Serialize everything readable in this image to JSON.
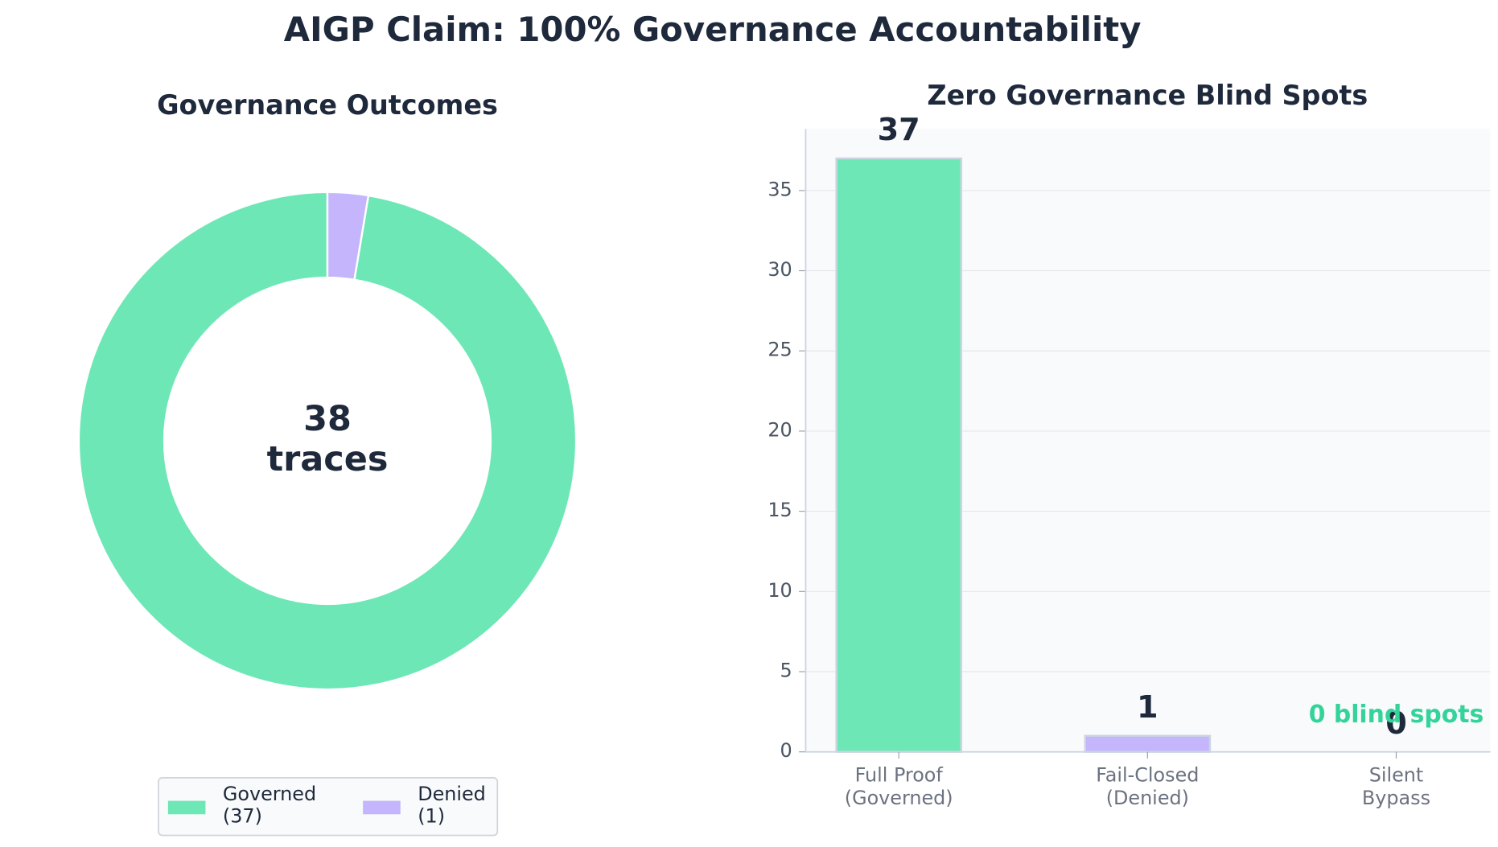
{
  "title": "AIGP Claim: 100% Governance Accountability",
  "chart_data": [
    {
      "type": "donut",
      "title": "Governance Outcomes",
      "center_text": "38\ntraces",
      "categories": [
        "Governed\n(37)",
        "Denied\n(1)"
      ],
      "values": [
        37,
        1
      ],
      "colors": [
        "#6ee7b7",
        "#c4b5fd"
      ],
      "legend": "lower center"
    },
    {
      "type": "bar",
      "title": "Zero Governance Blind Spots",
      "categories": [
        "Full Proof\n(Governed)",
        "Fail-Closed\n(Denied)",
        "Silent\nBypass"
      ],
      "values": [
        37,
        1,
        0
      ],
      "colors": [
        "#6ee7b7",
        "#c4b5fd",
        "#fca5a5"
      ],
      "annotation": "0 blind spots",
      "ylim": [
        0,
        38.85
      ],
      "yticks": [
        0,
        5,
        10,
        15,
        20,
        25,
        30,
        35
      ],
      "grid": true
    }
  ]
}
